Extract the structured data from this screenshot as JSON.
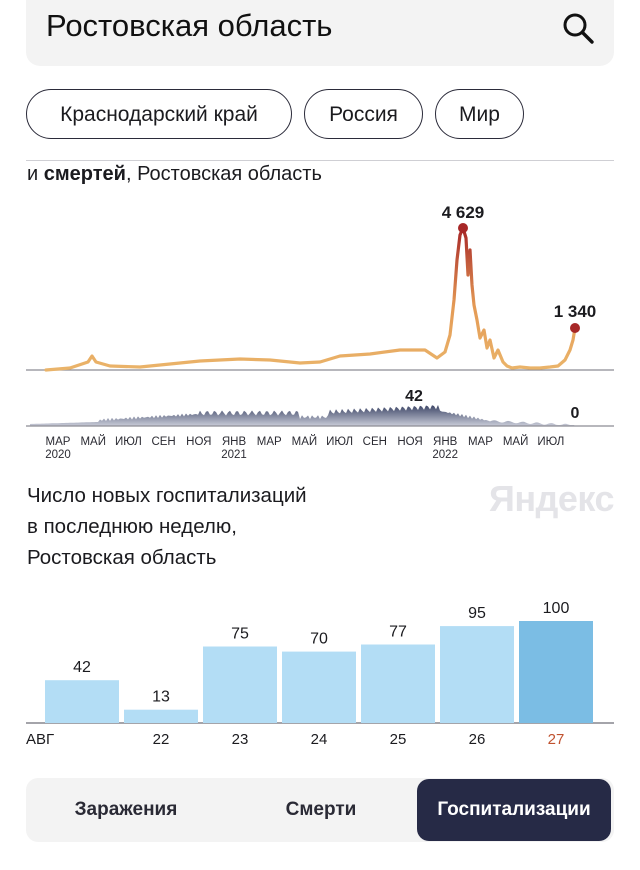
{
  "search": {
    "title": "Ростовская область",
    "icon": "search-icon"
  },
  "chips": [
    "Краснодарский край",
    "Россия",
    "Мир"
  ],
  "cases_chart": {
    "subtitle_prefix": "и ",
    "subtitle_bold": "смертей",
    "subtitle_suffix": ", Ростовская область",
    "peak_label": "4 629",
    "last_label": "1 340",
    "deaths_peak_label": "42",
    "deaths_last_label": "0",
    "axis_months": [
      "МАР",
      "МАЙ",
      "ИЮЛ",
      "СЕН",
      "НОЯ",
      "ЯНВ",
      "МАР",
      "МАЙ",
      "ИЮЛ",
      "СЕН",
      "НОЯ",
      "ЯНВ",
      "МАР",
      "МАЙ",
      "ИЮЛ"
    ],
    "axis_years": [
      "2020",
      "2021",
      "2022"
    ],
    "colors": {
      "line_low": "#eab46a",
      "line_high": "#a72727",
      "deaths_fill": "#3c4566"
    }
  },
  "hospital": {
    "title_lines": [
      "Число новых госпитализаций",
      "в последнюю неделю,",
      "Ростовская область"
    ],
    "watermark": "Яндекс"
  },
  "chart_data": {
    "type": "bar",
    "categories": [
      "АВГ",
      "22",
      "23",
      "24",
      "25",
      "26",
      "27"
    ],
    "values": [
      42,
      13,
      75,
      70,
      77,
      95,
      100
    ],
    "highlight_last": true,
    "colors": {
      "bar": "#b3ddf5",
      "bar_highlight": "#7bbde4",
      "label_highlight": "#c0522f"
    }
  },
  "tabs": [
    {
      "label": "Заражения",
      "active": false
    },
    {
      "label": "Смерти",
      "active": false
    },
    {
      "label": "Госпитализации",
      "active": true
    }
  ]
}
